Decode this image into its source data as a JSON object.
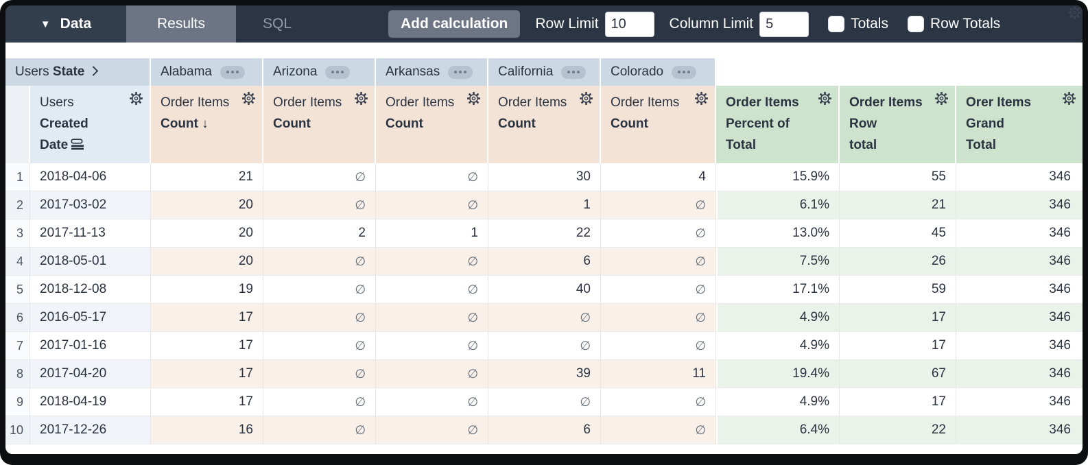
{
  "colors": {
    "topbar_bg": "#2b3544",
    "results_tab_bg": "#6d7585",
    "button_bg": "#6e7686",
    "pivot_header_bg": "#ccd8e4",
    "dimension_header_bg": "#e2eaf3",
    "measure_header_bg": "#f2e3d6",
    "calculation_header_bg": "#cde3cd",
    "even_row_measure": "#f8f0e9",
    "even_row_calculation": "#e9f3e9",
    "text": "#2b3240"
  },
  "topbar": {
    "data_label": "Data",
    "tabs": [
      {
        "label": "Results",
        "active": true
      },
      {
        "label": "SQL",
        "active": false
      }
    ],
    "add_calculation_label": "Add calculation",
    "row_limit": {
      "label": "Row Limit",
      "value": "10"
    },
    "column_limit": {
      "label": "Column Limit",
      "value": "5"
    },
    "totals": {
      "label": "Totals",
      "checked": false
    },
    "row_totals": {
      "label": "Row Totals",
      "checked": false
    }
  },
  "pivot": {
    "dimension": {
      "view": "Users",
      "field": "State"
    },
    "values": [
      "Alabama",
      "Arizona",
      "Arkansas",
      "California",
      "Colorado"
    ]
  },
  "headers": {
    "row_dimension": {
      "view": "Users",
      "field": "Created Date"
    },
    "measures": [
      {
        "view": "Order Items",
        "field": "Count",
        "sorted": "desc"
      },
      {
        "view": "Order Items",
        "field": "Count",
        "sorted": null
      },
      {
        "view": "Order Items",
        "field": "Count",
        "sorted": null
      },
      {
        "view": "Order Items",
        "field": "Count",
        "sorted": null
      },
      {
        "view": "Order Items",
        "field": "Count",
        "sorted": null
      }
    ],
    "calculations": [
      {
        "label": "Order Items Percent of Total",
        "lines": [
          "Order Items",
          "Percent of",
          "Total"
        ]
      },
      {
        "label": "Order Items Row total",
        "lines": [
          "Order Items",
          "Row",
          "total"
        ]
      },
      {
        "label": "Orer Items Grand Total",
        "lines": [
          "Orer Items",
          "Grand",
          "Total"
        ]
      }
    ]
  },
  "table": {
    "null_symbol": "∅",
    "sort_arrow": "↓",
    "rows": [
      {
        "n": "1",
        "date": "2018-04-06",
        "values": [
          "21",
          null,
          null,
          "30",
          "4"
        ],
        "percent": "15.9%",
        "row_total": "55",
        "grand_total": "346"
      },
      {
        "n": "2",
        "date": "2017-03-02",
        "values": [
          "20",
          null,
          null,
          "1",
          null
        ],
        "percent": "6.1%",
        "row_total": "21",
        "grand_total": "346"
      },
      {
        "n": "3",
        "date": "2017-11-13",
        "values": [
          "20",
          "2",
          "1",
          "22",
          null
        ],
        "percent": "13.0%",
        "row_total": "45",
        "grand_total": "346"
      },
      {
        "n": "4",
        "date": "2018-05-01",
        "values": [
          "20",
          null,
          null,
          "6",
          null
        ],
        "percent": "7.5%",
        "row_total": "26",
        "grand_total": "346"
      },
      {
        "n": "5",
        "date": "2018-12-08",
        "values": [
          "19",
          null,
          null,
          "40",
          null
        ],
        "percent": "17.1%",
        "row_total": "59",
        "grand_total": "346"
      },
      {
        "n": "6",
        "date": "2016-05-17",
        "values": [
          "17",
          null,
          null,
          null,
          null
        ],
        "percent": "4.9%",
        "row_total": "17",
        "grand_total": "346"
      },
      {
        "n": "7",
        "date": "2017-01-16",
        "values": [
          "17",
          null,
          null,
          null,
          null
        ],
        "percent": "4.9%",
        "row_total": "17",
        "grand_total": "346"
      },
      {
        "n": "8",
        "date": "2017-04-20",
        "values": [
          "17",
          null,
          null,
          "39",
          "11"
        ],
        "percent": "19.4%",
        "row_total": "67",
        "grand_total": "346"
      },
      {
        "n": "9",
        "date": "2018-04-19",
        "values": [
          "17",
          null,
          null,
          null,
          null
        ],
        "percent": "4.9%",
        "row_total": "17",
        "grand_total": "346"
      },
      {
        "n": "10",
        "date": "2017-12-26",
        "values": [
          "16",
          null,
          null,
          "6",
          null
        ],
        "percent": "6.4%",
        "row_total": "22",
        "grand_total": "346"
      }
    ]
  }
}
